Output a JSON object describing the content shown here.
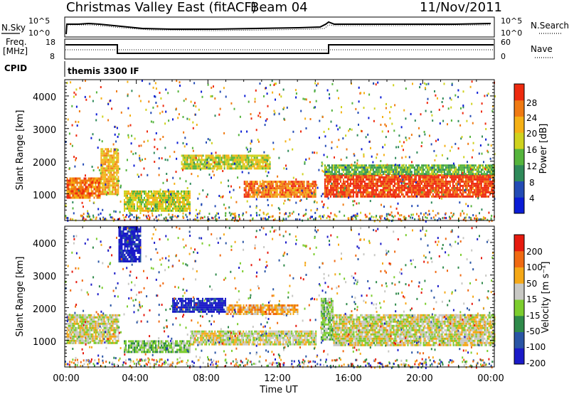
{
  "header": {
    "title": "Christmas Valley East (fitACF)",
    "beam": "Beam 04",
    "date": "11/Nov/2011"
  },
  "strips": {
    "nsky_label": "N.Sky",
    "nsearch_label": "N.Search",
    "noise_ticks": [
      "10^5",
      "10^0"
    ],
    "freq_label_line1": "Freq.",
    "freq_label_line2": "[MHz]",
    "freq_ticks": [
      "18",
      "8"
    ],
    "nave_label": "Nave",
    "nave_ticks": [
      "60",
      "0"
    ],
    "cpid_label": "CPID",
    "cpid_value": "themis 3300 IF"
  },
  "x_axis": {
    "label": "Time UT",
    "ticks": [
      "00:00",
      "04:00",
      "08:00",
      "12:00",
      "16:00",
      "20:00",
      "00:00"
    ]
  },
  "chart_data": [
    {
      "type": "heatmap",
      "ylabel": "Slant Range [km]",
      "xlabel": "Time UT",
      "xlim_hours": [
        0,
        24
      ],
      "ylim": [
        180,
        4500
      ],
      "yticks": [
        "4000",
        "3000",
        "2000",
        "1000"
      ],
      "colorbar": {
        "label": "Power [dB]",
        "ticks": [
          "28",
          "24",
          "20",
          "16",
          "12",
          "8",
          "4"
        ],
        "colors": [
          "#0a1cd6",
          "#234bb5",
          "#2f8a5a",
          "#55b43c",
          "#cfd21e",
          "#f5b015",
          "#f07a12",
          "#ee2a0e"
        ]
      },
      "regions": [
        {
          "t": [
            0.1,
            2.0
          ],
          "r": [
            900,
            1500
          ],
          "level": 6
        },
        {
          "t": [
            2.0,
            3.0
          ],
          "r": [
            1000,
            2400
          ],
          "level": 5
        },
        {
          "t": [
            3.3,
            7.0
          ],
          "r": [
            500,
            1100
          ],
          "level": 4
        },
        {
          "t": [
            6.5,
            11.5
          ],
          "r": [
            1800,
            2200
          ],
          "level": 4
        },
        {
          "t": [
            10.0,
            14.0
          ],
          "r": [
            900,
            1400
          ],
          "level": 6
        },
        {
          "t": [
            14.5,
            24.0
          ],
          "r": [
            900,
            1600
          ],
          "level": 7
        },
        {
          "t": [
            14.5,
            24.0
          ],
          "r": [
            1600,
            1900
          ],
          "level": 3
        }
      ]
    },
    {
      "type": "heatmap",
      "ylabel": "Slant Range [km]",
      "xlabel": "Time UT",
      "xlim_hours": [
        0,
        24
      ],
      "ylim": [
        180,
        4500
      ],
      "yticks": [
        "4000",
        "3000",
        "2000",
        "1000"
      ],
      "colorbar": {
        "label": "Velocity [m s⁻¹]",
        "ticks": [
          "200",
          "100",
          "50",
          "15",
          "-15",
          "-50",
          "-100",
          "-200"
        ],
        "colors": [
          "#1a1ac8",
          "#2a55a5",
          "#2f8a4a",
          "#7ccd2e",
          "#c8c8c4",
          "#f5a817",
          "#f06a12",
          "#e61a0e"
        ]
      },
      "regions": [
        {
          "t": [
            0.1,
            3.0
          ],
          "r": [
            900,
            1800
          ],
          "level": 4
        },
        {
          "t": [
            3.0,
            4.2
          ],
          "r": [
            3400,
            4500
          ],
          "level": 0
        },
        {
          "t": [
            3.3,
            7.0
          ],
          "r": [
            650,
            1000
          ],
          "level": 3
        },
        {
          "t": [
            6.0,
            9.0
          ],
          "r": [
            1900,
            2300
          ],
          "level": 0
        },
        {
          "t": [
            9.0,
            13.0
          ],
          "r": [
            1800,
            2100
          ],
          "level": 5
        },
        {
          "t": [
            7.0,
            14.0
          ],
          "r": [
            850,
            1300
          ],
          "level": 4
        },
        {
          "t": [
            14.3,
            15.0
          ],
          "r": [
            1000,
            2300
          ],
          "level": 3
        },
        {
          "t": [
            15.0,
            24.0
          ],
          "r": [
            850,
            1800
          ],
          "level": 4
        }
      ]
    }
  ]
}
